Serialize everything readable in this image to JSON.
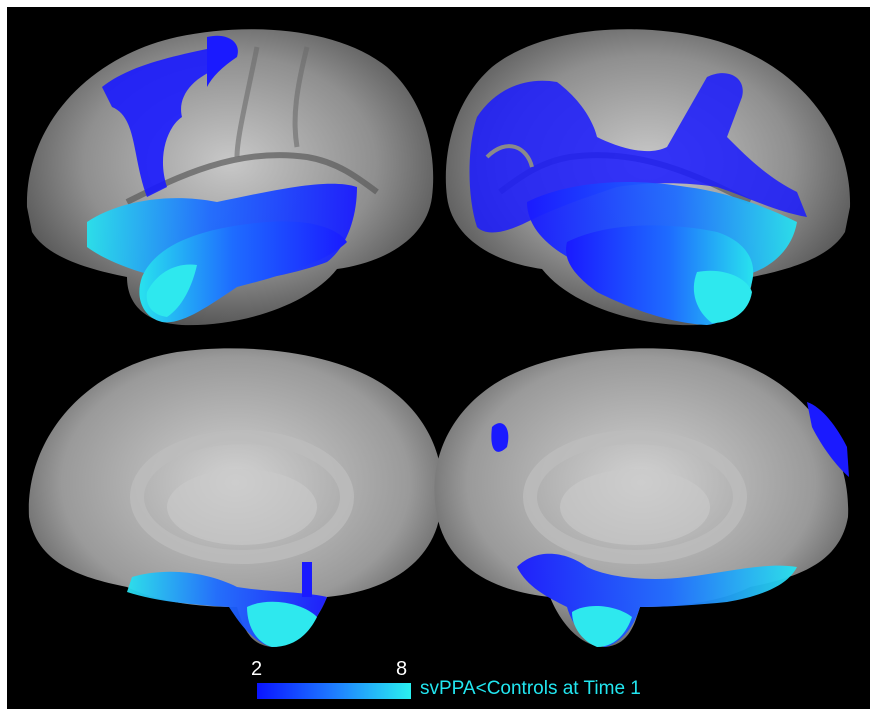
{
  "figure": {
    "panels": [
      {
        "id": "left-lateral",
        "view": "lateral",
        "hemisphere": "left"
      },
      {
        "id": "right-lateral",
        "view": "lateral",
        "hemisphere": "right"
      },
      {
        "id": "left-medial",
        "view": "medial",
        "hemisphere": "left"
      },
      {
        "id": "right-medial",
        "view": "medial",
        "hemisphere": "right"
      }
    ],
    "colors": {
      "background": "#000000",
      "cortex": "#9a9a9a",
      "overlay_low": "#1a1aff",
      "overlay_high": "#33eeee"
    }
  },
  "colorbar": {
    "min_label": "2",
    "max_label": "8",
    "title": "svPPA<Controls at Time 1",
    "color_low": "#0a14ff",
    "color_high": "#2af0f0"
  }
}
